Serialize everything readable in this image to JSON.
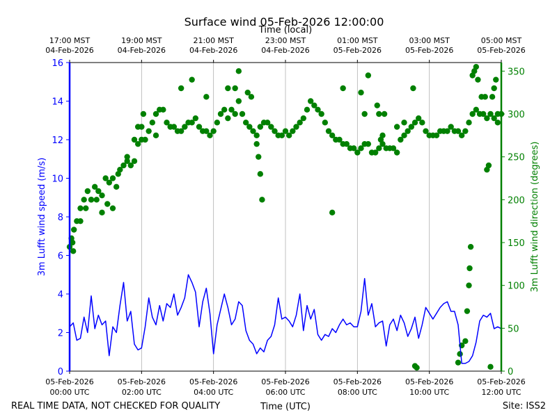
{
  "chart_data": {
    "type": "line+scatter",
    "title": "Surface wind 05-Feb-2026 12:00:00",
    "top_xlabel": "Time (local)",
    "xlabel": "Time (UTC)",
    "ylabel_left": "3m Lufft wind speed (m/s)",
    "ylabel_right": "3m Lufft wind direction (degrees)",
    "footer_left": "REAL TIME DATA, NOT CHECKED FOR QUALITY",
    "footer_right": "Site: ISS2",
    "colors": {
      "speed": "#0000ff",
      "direction": "#008000",
      "grid": "#b0b0b0",
      "axis": "#000000"
    },
    "x_range_hours_utc": [
      0,
      12
    ],
    "ylim_left": [
      0,
      16
    ],
    "ylim_right": [
      0,
      360
    ],
    "yticks_left": [
      0,
      2,
      4,
      6,
      8,
      10,
      12,
      14,
      16
    ],
    "yticks_right": [
      0,
      50,
      100,
      150,
      200,
      250,
      300,
      350
    ],
    "bottom_ticks": [
      {
        "hour": 0,
        "date": "05-Feb-2026",
        "time": "00:00 UTC"
      },
      {
        "hour": 2,
        "date": "05-Feb-2026",
        "time": "02:00 UTC"
      },
      {
        "hour": 4,
        "date": "05-Feb-2026",
        "time": "04:00 UTC"
      },
      {
        "hour": 6,
        "date": "05-Feb-2026",
        "time": "06:00 UTC"
      },
      {
        "hour": 8,
        "date": "05-Feb-2026",
        "time": "08:00 UTC"
      },
      {
        "hour": 10,
        "date": "05-Feb-2026",
        "time": "10:00 UTC"
      },
      {
        "hour": 12,
        "date": "05-Feb-2026",
        "time": "12:00 UTC"
      }
    ],
    "top_ticks": [
      {
        "hour": 0,
        "time": "17:00 MST",
        "date": "04-Feb-2026"
      },
      {
        "hour": 2,
        "time": "19:00 MST",
        "date": "04-Feb-2026"
      },
      {
        "hour": 4,
        "time": "21:00 MST",
        "date": "04-Feb-2026"
      },
      {
        "hour": 6,
        "time": "23:00 MST",
        "date": "04-Feb-2026"
      },
      {
        "hour": 8,
        "time": "01:00 MST",
        "date": "05-Feb-2026"
      },
      {
        "hour": 10,
        "time": "03:00 MST",
        "date": "05-Feb-2026"
      },
      {
        "hour": 12,
        "time": "05:00 MST",
        "date": "05-Feb-2026"
      }
    ],
    "series": [
      {
        "name": "wind speed (m/s)",
        "axis": "left",
        "style": "line",
        "x": [
          0,
          0.1,
          0.2,
          0.3,
          0.4,
          0.5,
          0.6,
          0.7,
          0.8,
          0.9,
          1.0,
          1.1,
          1.2,
          1.3,
          1.4,
          1.5,
          1.6,
          1.7,
          1.8,
          1.9,
          2.0,
          2.1,
          2.2,
          2.3,
          2.4,
          2.5,
          2.6,
          2.7,
          2.8,
          2.9,
          3.0,
          3.1,
          3.2,
          3.3,
          3.4,
          3.5,
          3.6,
          3.7,
          3.8,
          3.9,
          4.0,
          4.1,
          4.2,
          4.3,
          4.4,
          4.5,
          4.6,
          4.7,
          4.8,
          4.9,
          5.0,
          5.1,
          5.2,
          5.3,
          5.4,
          5.5,
          5.6,
          5.7,
          5.8,
          5.9,
          6.0,
          6.1,
          6.2,
          6.3,
          6.4,
          6.5,
          6.6,
          6.7,
          6.8,
          6.9,
          7.0,
          7.1,
          7.2,
          7.3,
          7.4,
          7.5,
          7.6,
          7.7,
          7.8,
          7.9,
          8.0,
          8.1,
          8.2,
          8.3,
          8.4,
          8.5,
          8.6,
          8.7,
          8.8,
          8.9,
          9.0,
          9.1,
          9.2,
          9.3,
          9.4,
          9.5,
          9.6,
          9.7,
          9.8,
          9.9,
          10.0,
          10.1,
          10.2,
          10.3,
          10.4,
          10.5,
          10.6,
          10.7,
          10.8,
          10.9,
          11.0,
          11.1,
          11.2,
          11.3,
          11.4,
          11.5,
          11.6,
          11.7,
          11.8,
          11.9,
          12.0
        ],
        "values": [
          2.3,
          2.5,
          1.6,
          1.7,
          2.8,
          2.0,
          3.9,
          2.2,
          2.9,
          2.4,
          2.6,
          0.8,
          2.3,
          2.0,
          3.4,
          4.6,
          2.6,
          3.1,
          1.4,
          1.1,
          1.2,
          2.3,
          3.8,
          2.8,
          2.4,
          3.4,
          2.6,
          3.5,
          3.3,
          4.0,
          2.9,
          3.3,
          3.8,
          5.0,
          4.6,
          4.1,
          2.3,
          3.6,
          4.3,
          3.0,
          0.9,
          2.4,
          3.2,
          4.0,
          3.3,
          2.4,
          2.7,
          3.6,
          3.4,
          2.1,
          1.6,
          1.4,
          0.9,
          1.2,
          1.0,
          1.6,
          1.8,
          2.4,
          3.8,
          2.7,
          2.8,
          2.6,
          2.3,
          2.9,
          4.0,
          2.1,
          3.4,
          2.7,
          3.2,
          1.9,
          1.6,
          1.9,
          1.8,
          2.2,
          2.0,
          2.4,
          2.7,
          2.4,
          2.5,
          2.3,
          2.3,
          3.1,
          4.8,
          2.9,
          3.5,
          2.3,
          2.5,
          2.6,
          1.3,
          2.4,
          2.7,
          2.1,
          2.9,
          2.5,
          1.8,
          2.2,
          2.8,
          1.7,
          2.4,
          3.3,
          3.0,
          2.7,
          3.0,
          3.3,
          3.5,
          3.6,
          3.1,
          3.1,
          2.4,
          0.4,
          0.4,
          0.5,
          0.8,
          1.5,
          2.6,
          2.9,
          2.8,
          3.0,
          2.2,
          2.3,
          2.2
        ]
      },
      {
        "name": "wind direction (degrees)",
        "axis": "right",
        "style": "markers",
        "x": [
          0,
          0.1,
          0.2,
          0.3,
          0.4,
          0.5,
          0.6,
          0.7,
          0.8,
          0.9,
          1.0,
          1.1,
          1.2,
          1.3,
          1.4,
          1.5,
          1.6,
          1.7,
          1.8,
          1.9,
          2.0,
          2.1,
          2.2,
          2.3,
          2.4,
          2.5,
          2.6,
          2.7,
          2.8,
          2.9,
          3.0,
          3.1,
          3.2,
          3.3,
          3.4,
          3.5,
          3.6,
          3.7,
          3.8,
          3.9,
          4.0,
          4.1,
          4.2,
          4.3,
          4.4,
          4.5,
          4.6,
          4.7,
          4.8,
          4.9,
          5.0,
          5.1,
          5.2,
          5.3,
          5.4,
          5.5,
          5.6,
          5.7,
          5.8,
          5.9,
          6.0,
          6.1,
          6.2,
          6.3,
          6.4,
          6.5,
          6.6,
          6.7,
          6.8,
          6.9,
          7.0,
          7.1,
          7.2,
          7.3,
          7.4,
          7.5,
          7.6,
          7.7,
          7.8,
          7.9,
          8.0,
          8.1,
          8.2,
          8.3,
          8.4,
          8.5,
          8.6,
          8.7,
          8.8,
          8.9,
          9.0,
          9.1,
          9.2,
          9.3,
          9.4,
          9.5,
          9.6,
          9.7,
          9.8,
          9.9,
          10.0,
          10.1,
          10.2,
          10.3,
          10.4,
          10.5,
          10.6,
          10.7,
          10.8,
          10.9,
          11.0,
          11.1,
          11.2,
          11.3,
          11.4,
          11.5,
          11.6,
          11.7,
          11.8,
          11.9,
          12.0,
          0.05,
          0.08,
          0.12,
          0.3,
          0.45,
          0.6,
          0.75,
          0.9,
          1.05,
          1.2,
          1.35,
          1.6,
          1.8,
          1.9,
          2.0,
          2.05,
          2.4,
          3.1,
          3.4,
          3.8,
          4.4,
          4.6,
          4.7,
          4.95,
          5.05,
          5.2,
          5.25,
          5.3,
          5.35,
          7.3,
          7.6,
          8.1,
          8.2,
          8.3,
          8.55,
          8.6,
          8.65,
          8.7,
          8.75,
          9.1,
          9.3,
          9.55,
          9.6,
          9.65,
          10.8,
          10.85,
          10.9,
          11.0,
          11.05,
          11.1,
          11.12,
          11.15,
          11.2,
          11.25,
          11.3,
          11.35,
          11.45,
          11.55,
          11.6,
          11.65,
          11.7,
          11.75,
          11.8,
          11.85,
          11.9
        ],
        "values": [
          145,
          140,
          175,
          190,
          200,
          210,
          200,
          215,
          210,
          205,
          225,
          220,
          225,
          215,
          235,
          240,
          250,
          240,
          245,
          265,
          270,
          270,
          280,
          290,
          300,
          305,
          305,
          290,
          285,
          285,
          280,
          280,
          285,
          290,
          290,
          295,
          285,
          280,
          280,
          275,
          280,
          290,
          300,
          305,
          295,
          305,
          300,
          315,
          300,
          290,
          285,
          280,
          275,
          285,
          290,
          290,
          285,
          280,
          275,
          275,
          280,
          275,
          280,
          285,
          290,
          295,
          305,
          315,
          310,
          305,
          300,
          290,
          280,
          275,
          270,
          270,
          265,
          265,
          260,
          260,
          255,
          260,
          265,
          265,
          255,
          255,
          260,
          265,
          260,
          260,
          260,
          255,
          270,
          275,
          280,
          285,
          290,
          295,
          290,
          280,
          275,
          275,
          275,
          280,
          280,
          280,
          285,
          280,
          280,
          275,
          280,
          290,
          300,
          305,
          300,
          300,
          295,
          300,
          295,
          290,
          300,
          155,
          150,
          165,
          175,
          190,
          200,
          200,
          185,
          195,
          190,
          230,
          245,
          270,
          285,
          285,
          300,
          275,
          330,
          340,
          320,
          330,
          330,
          350,
          325,
          320,
          265,
          250,
          230,
          200,
          185,
          330,
          325,
          300,
          345,
          310,
          300,
          270,
          275,
          300,
          285,
          290,
          330,
          6,
          4,
          10,
          20,
          30,
          35,
          70,
          100,
          120,
          145,
          345,
          350,
          355,
          340,
          320,
          320,
          235,
          240,
          5,
          320,
          330,
          340,
          300
        ]
      }
    ]
  }
}
